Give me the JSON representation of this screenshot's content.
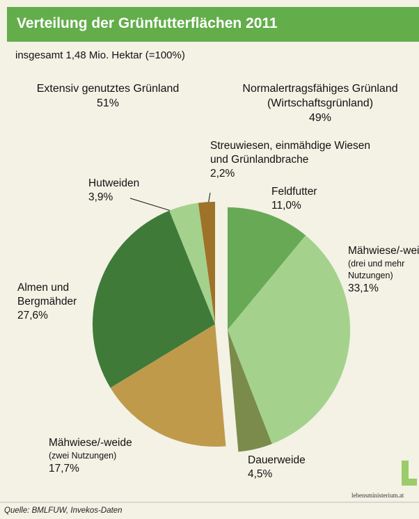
{
  "chart_data": {
    "type": "pie",
    "title": "Verteilung der Grünfutterflächen 2011",
    "subtitle": "insgesamt 1,48 Mio. Hektar (=100%)",
    "groups": [
      {
        "name": "Normalertragsfähiges Grünland (Wirtschaftsgrünland)",
        "value": 49,
        "value_label": "49%",
        "slices": [
          {
            "name": "Feldfutter",
            "note": null,
            "value": 11.0,
            "value_label": "11,0%",
            "color": "#68a955"
          },
          {
            "name": "Mähwiese/-weide",
            "note": "(drei und mehr Nutzungen)",
            "value": 33.1,
            "value_label": "33,1%",
            "color": "#a4d28c"
          },
          {
            "name": "Dauerweide",
            "note": null,
            "value": 4.5,
            "value_label": "4,5%",
            "color": "#7a8b4b"
          }
        ]
      },
      {
        "name": "Extensiv genutztes Grünland",
        "value": 51,
        "value_label": "51%",
        "slices": [
          {
            "name": "Streuwiesen, einmähdige Wiesen und Grünlandbrache",
            "note": null,
            "value": 2.2,
            "value_label": "2,2%",
            "color": "#9f7229"
          },
          {
            "name": "Hutweiden",
            "note": null,
            "value": 3.9,
            "value_label": "3,9%",
            "color": "#a4d28c"
          },
          {
            "name": "Almen und Bergmähder",
            "note": null,
            "value": 27.6,
            "value_label": "27,6%",
            "color": "#3f7a39"
          },
          {
            "name": "Mähwiese/-weide",
            "note": "(zwei Nutzungen)",
            "value": 17.7,
            "value_label": "17,7%",
            "color": "#bf9a4b"
          }
        ]
      }
    ]
  },
  "source": "Quelle: BMLFUW, Invekos-Daten",
  "logo": "lebensministerium.at"
}
